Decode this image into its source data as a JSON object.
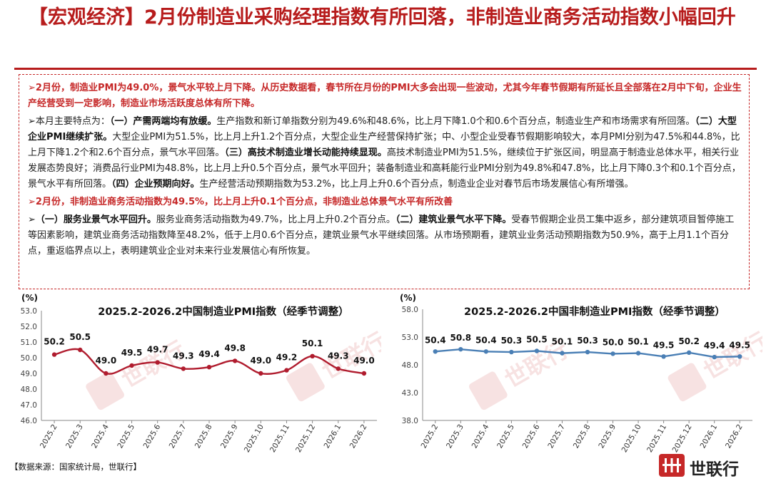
{
  "title": "【宏观经济】2月份制造业采购经理指数有所回落，非制造业商务活动指数小幅回升",
  "text": {
    "p1": "➢2月份，制造业PMI为49.0%，景气水平较上月下降。从历史数据看，春节所在月份的PMI大多会出现一些波动，尤其今年春节假期有所延长且全部落在2月中下旬，企业生产经营受到一定影响，制造业市场活跃度总体有所下降。",
    "p2_a": "➢本月主要特点为：",
    "p2_b": "（一）产需两端均有放缓。",
    "p2_c": "生产指数和新订单指数分别为49.6%和48.6%，比上月下降1.0个和0.6个百分点，制造业生产和市场需求有所回落。",
    "p2_d": "（二）大型企业PMI继续扩张。",
    "p2_e": "大型企业PMI为51.5%，比上月上升1.2个百分点，大型企业生产经营保持扩张；中、小型企业受春节假期影响较大，本月PMI分别为47.5%和44.8%，比上月下降1.2个和2.6个百分点，景气水平回落。",
    "p2_f": "（三）高技术制造业增长动能持续显现。",
    "p2_g": "高技术制造业PMI为51.5%，继续位于扩张区间，明显高于制造业总体水平，相关行业发展态势良好；消费品行业PMI为48.8%，比上月上升0.5个百分点，景气水平回升；装备制造业和高耗能行业PMI分别为49.8%和47.8%，比上月下降0.3个和0.1个百分点，景气水平有所回落。",
    "p2_h": "（四）企业预期向好。",
    "p2_i": "生产经营活动预期指数为53.2%，比上月上升0.6个百分点，制造业企业对春节后市场发展信心有所增强。",
    "p3": "➢2月份，非制造业商务活动指数为49.5%，比上月上升0.1个百分点，非制造业总体景气水平有所改善",
    "p4_a": "➢",
    "p4_b": "（一）服务业景气水平回升。",
    "p4_c": "服务业商务活动指数为49.7%，比上月上升0.2个百分点。",
    "p4_d": "（二）建筑业景气水平下降。",
    "p4_e": "受春节假期企业员工集中返乡，部分建筑项目暂停施工等因素影响，建筑业商务活动指数降至48.2%，低于上月0.6个百分点，建筑业景气水平继续回落。从市场预期看，建筑业业务活动预期指数为50.9%，高于上月1.1个百分点，重返临界点以上，表明建筑业企业对未来行业发展信心有所恢复。"
  },
  "footnote": "【数据来源：国家统计局，世联行】",
  "logo": {
    "text": "世联行",
    "color": "#c62828"
  },
  "chart_data": [
    {
      "type": "line",
      "title": "2025.2-2026.2中国制造业PMI指数（经季节调整）",
      "ylabel": "(%)",
      "categories": [
        "2025.2",
        "2025.3",
        "2025.4",
        "2025.5",
        "2025.6",
        "2025.7",
        "2025.8",
        "2025.9",
        "2025.10",
        "2025.11",
        "2025.12",
        "2026.1",
        "2026.2"
      ],
      "series": [
        {
          "values": [
            50.2,
            50.5,
            49.0,
            49.5,
            49.7,
            49.3,
            49.4,
            49.8,
            49.0,
            49.2,
            50.1,
            49.3,
            49.0
          ],
          "color": "#b01c2e"
        }
      ],
      "ylim": [
        46.0,
        53.0
      ],
      "yticks": [
        "46.0",
        "47.0",
        "48.0",
        "49.0",
        "50.0",
        "51.0",
        "52.0",
        "53.0"
      ],
      "smooth": true,
      "markers": true,
      "grid": false
    },
    {
      "type": "line",
      "title": "2025.2-2026.2中国非制造业PMI指数（经季节调整）",
      "ylabel": "(%)",
      "categories": [
        "2025.2",
        "2025.3",
        "2025.4",
        "2025.5",
        "2025.6",
        "2025.7",
        "2025.8",
        "2025.9",
        "2025.10",
        "2025.11",
        "2025.12",
        "2026.1",
        "2026.2"
      ],
      "series": [
        {
          "values": [
            50.4,
            50.8,
            50.4,
            50.3,
            50.5,
            50.1,
            50.3,
            50.0,
            50.1,
            49.5,
            50.2,
            49.4,
            49.5
          ],
          "color": "#4a7fb5"
        }
      ],
      "ylim": [
        38.0,
        58.0
      ],
      "yticks": [
        "38.0",
        "43.0",
        "48.0",
        "53.0",
        "58.0"
      ],
      "smooth": false,
      "markers": true,
      "grid": false
    }
  ]
}
